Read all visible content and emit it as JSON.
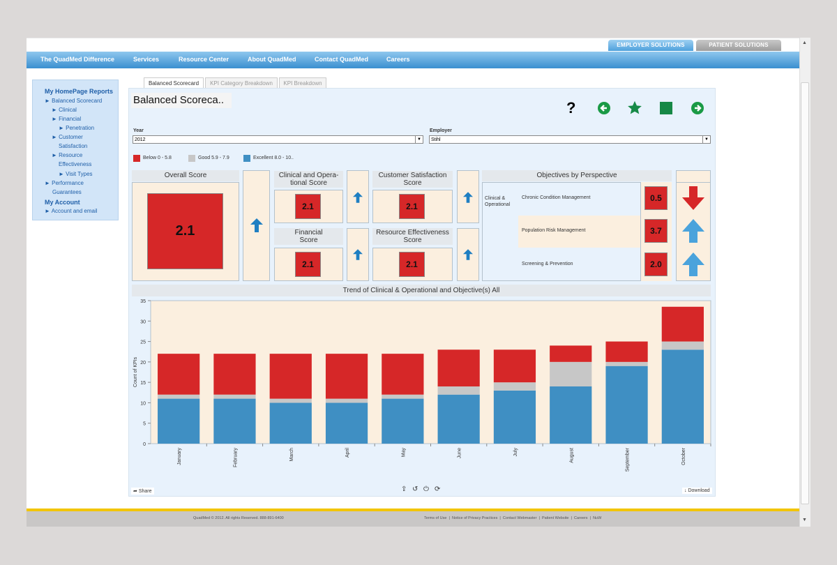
{
  "top_tabs": {
    "employer": "EMPLOYER SOLUTIONS",
    "patient": "PATIENT SOLUTIONS"
  },
  "nav": [
    "The QuadMed Difference",
    "Services",
    "Resource Center",
    "About QuadMed",
    "Contact QuadMed",
    "Careers"
  ],
  "sidebar": {
    "heading": "My HomePage Reports",
    "items": [
      "Balanced Scorecard",
      "Clinical",
      "Financial",
      "Penetration",
      "Customer",
      "Satisfaction",
      "Resource",
      "Effectiveness",
      "Visit Types",
      "Performance",
      "Guarantees"
    ],
    "account_heading": "My Account",
    "account_item": "Account and email"
  },
  "report_tabs": [
    "Balanced Scorecard",
    "KPI Category Breakdown",
    "KPI Breakdown"
  ],
  "title": "Balanced Scoreca..",
  "toolbar": {
    "help": "?"
  },
  "filters": {
    "year_label": "Year",
    "year_value": "2012",
    "employer_label": "Employer",
    "employer_value": "Stihl"
  },
  "legend": [
    {
      "label": "Below 0 - 5.8",
      "color": "#d62728"
    },
    {
      "label": "Good 5.9 - 7.9",
      "color": "#c7c7c7"
    },
    {
      "label": "Excellent 8.0 - 10..",
      "color": "#3f8fc3"
    }
  ],
  "scores": {
    "overall_title": "Overall Score",
    "overall": "2.1",
    "clinical_title": "Clinical and Opera-tional Score",
    "clinical": "2.1",
    "customer_title": "Customer Satisfaction Score",
    "customer": "2.1",
    "financial_title": "Financial Score",
    "financial": "2.1",
    "resource_title": "Resource Effectiveness Score",
    "resource": "2.1"
  },
  "objectives": {
    "title": "Objectives by Perspective",
    "perspective": "Clinical & Operational",
    "rows": [
      {
        "name": "Chronic Condition Management",
        "value": "0.5",
        "trend": "down"
      },
      {
        "name": "Population Risk Management",
        "value": "3.7",
        "trend": "up"
      },
      {
        "name": "Screening & Prevention",
        "value": "2.0",
        "trend": "up"
      }
    ]
  },
  "chart_data": {
    "type": "bar",
    "stacked": true,
    "title": "Trend of Clinical & Operational and Objective(s) All",
    "ylabel": "Count of KPIs",
    "ylim": [
      0,
      35
    ],
    "yticks": [
      0,
      5,
      10,
      15,
      20,
      25,
      30,
      35
    ],
    "categories": [
      "January",
      "February",
      "March",
      "April",
      "May",
      "June",
      "July",
      "August",
      "September",
      "October"
    ],
    "series": [
      {
        "name": "Excellent 8.0 - 10..",
        "color": "#3f8fc3",
        "values": [
          11,
          11,
          10,
          10,
          11,
          12,
          13,
          14,
          19,
          23
        ]
      },
      {
        "name": "Good 5.9 - 7.9",
        "color": "#c7c7c7",
        "values": [
          1,
          1,
          1,
          1,
          1,
          2,
          2,
          6,
          1,
          2
        ]
      },
      {
        "name": "Below 0 - 5.8",
        "color": "#d62728",
        "values": [
          10,
          10,
          11,
          11,
          10,
          9,
          8,
          4,
          5,
          8.5
        ]
      }
    ]
  },
  "report_footer": {
    "share": "Share",
    "download": "Download"
  },
  "footer": {
    "copyright": "QuadMed © 2012. All rights Reserved. 888-891-6400",
    "links": [
      "Terms of Use",
      "Notice of Privacy Practices",
      "Contact Webmaster",
      "Patient Website",
      "Careers",
      "NuW"
    ]
  }
}
